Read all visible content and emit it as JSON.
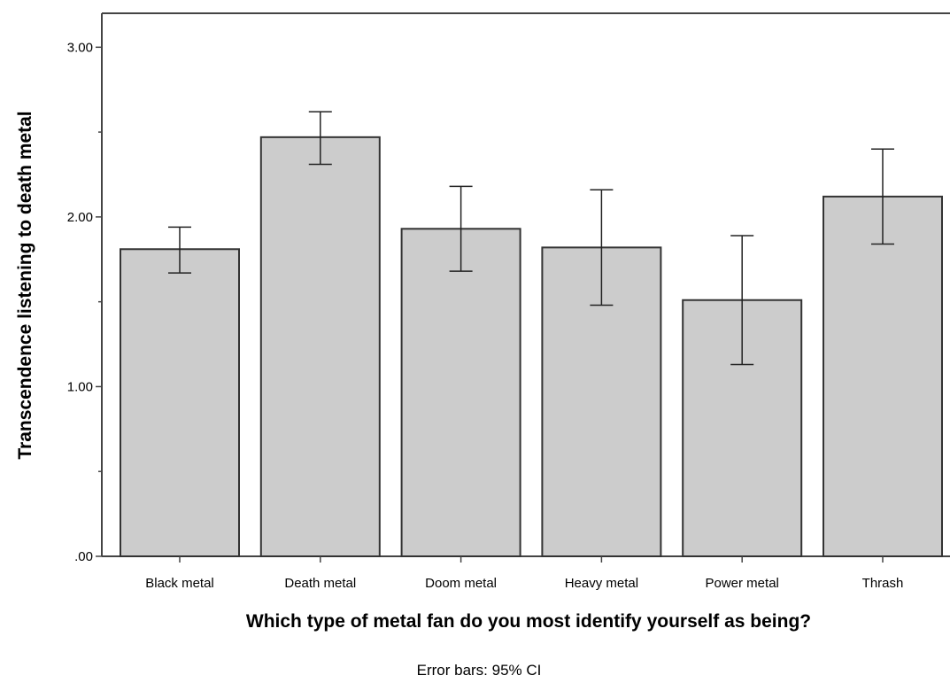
{
  "chart_data": {
    "type": "bar",
    "categories": [
      "Black metal",
      "Death metal",
      "Doom metal",
      "Heavy metal",
      "Power metal",
      "Thrash"
    ],
    "values": [
      1.81,
      2.47,
      1.93,
      1.82,
      1.51,
      2.12
    ],
    "error_low": [
      1.67,
      2.31,
      1.68,
      1.48,
      1.13,
      1.84
    ],
    "error_high": [
      1.94,
      2.62,
      2.18,
      2.16,
      1.89,
      2.4
    ],
    "ylim": [
      0,
      3.2
    ],
    "yticks": [
      0,
      1,
      2,
      3
    ],
    "ytick_labels": [
      ".00",
      "1.00",
      "2.00",
      "3.00"
    ],
    "ylabel": "Transcendence listening to death metal",
    "xlabel": "Which type of metal fan do you most identify yourself as being?",
    "note": "Error bars: 95% CI",
    "grid": false,
    "colors": {
      "bar_fill": "#cccccc",
      "bar_stroke": "#333333",
      "axis": "#444444"
    }
  }
}
